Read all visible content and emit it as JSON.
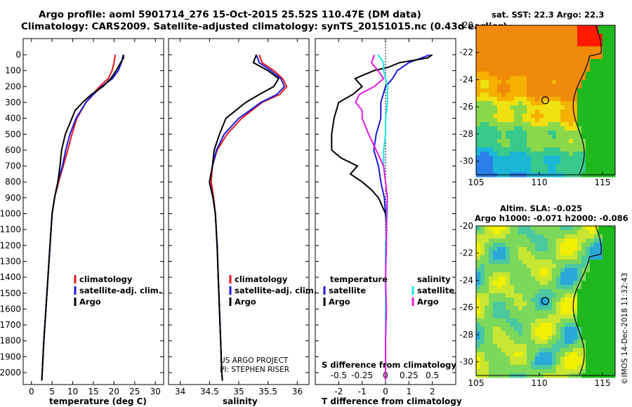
{
  "title_line1": "Argo profile: aoml 5901714_276 15-Oct-2015 25.52S 110.47E (DM data)",
  "title_line2": "Climatology: CARS2009. Satellite-adjusted climatology: synTS_20151015.nc (0.43d earlier)",
  "sst_title": "sat. SST: 22.3 Argo: 22.3",
  "sla_title1": "Altim. SLA: -0.025",
  "sla_title2": "Argo h1000: -0.071 h2000: -0.086",
  "stamp": "©IMOS 14-Dec-2018 11:32:43",
  "project_line1": "US ARGO PROJECT",
  "project_line2": "PI: STEPHEN RISER",
  "diff_annotation": "S difference from climatology",
  "colors": {
    "red": "#e8141c",
    "blue": "#1a1adc",
    "black": "#000000",
    "cyan": "#19e6e6",
    "magenta": "#e619e6"
  },
  "chart_data": [
    {
      "type": "line",
      "title": "",
      "xlabel": "temperature (deg C)",
      "ylabel": "",
      "xlim": [
        -2,
        32
      ],
      "ylim": [
        2100,
        0
      ],
      "x_ticks": [
        "0",
        "5",
        "10",
        "15",
        "20",
        "25",
        "30"
      ],
      "y_ticks": [
        "0",
        "100",
        "200",
        "300",
        "400",
        "500",
        "600",
        "700",
        "800",
        "900",
        "1000",
        "1100",
        "1200",
        "1300",
        "1400",
        "1500",
        "1600",
        "1700",
        "1800",
        "1900",
        "2000"
      ],
      "legend": [
        "climatology",
        "satellite-adj. clim.",
        "Argo"
      ],
      "series": [
        {
          "name": "climatology",
          "color": "red",
          "depth": [
            0,
            50,
            100,
            150,
            200,
            250,
            300,
            400,
            500,
            600,
            700,
            800,
            900,
            1000,
            1200,
            1400,
            1600,
            1800,
            2000,
            2050
          ],
          "values": [
            20.3,
            20.0,
            19.5,
            18.6,
            16.5,
            14.8,
            13.2,
            11.0,
            9.8,
            8.8,
            7.7,
            6.6,
            5.6,
            5.0,
            4.5,
            4.0,
            3.5,
            3.0,
            2.6,
            2.5
          ]
        },
        {
          "name": "satellite-adj. clim.",
          "color": "blue",
          "depth": [
            0,
            50,
            100,
            150,
            200,
            250,
            300,
            400,
            500,
            600,
            700,
            800,
            900,
            1000,
            1200,
            1400,
            1600,
            1800,
            2000,
            2050
          ],
          "values": [
            22.2,
            21.8,
            21.0,
            19.6,
            17.0,
            15.0,
            13.2,
            10.8,
            9.3,
            8.3,
            7.5,
            6.4,
            5.6,
            5.0,
            4.5,
            4.0,
            3.5,
            3.0,
            2.6,
            2.5
          ]
        },
        {
          "name": "Argo",
          "color": "black",
          "depth": [
            0,
            20,
            50,
            100,
            150,
            200,
            250,
            300,
            350,
            400,
            500,
            600,
            700,
            800,
            900,
            1000,
            1200,
            1400,
            1600,
            1800,
            2000,
            2050
          ],
          "values": [
            22.3,
            22.3,
            21.6,
            20.5,
            19.2,
            17.3,
            14.5,
            12.4,
            10.6,
            9.8,
            8.2,
            7.3,
            6.9,
            6.4,
            5.6,
            5.0,
            4.5,
            4.0,
            3.5,
            3.0,
            2.6,
            2.5
          ]
        }
      ]
    },
    {
      "type": "line",
      "title": "",
      "xlabel": "salinity",
      "ylabel": "",
      "xlim": [
        33.8,
        36.2
      ],
      "ylim": [
        2100,
        0
      ],
      "x_ticks": [
        "34",
        "34.5",
        "35",
        "35.5",
        "36"
      ],
      "legend": [
        "climatology",
        "satellite-adj. clim.",
        "Argo"
      ],
      "series": [
        {
          "name": "climatology",
          "color": "red",
          "depth": [
            0,
            50,
            100,
            150,
            200,
            250,
            300,
            400,
            500,
            600,
            700,
            800,
            900,
            1000,
            1200,
            1400,
            1600,
            1800,
            2000,
            2050
          ],
          "values": [
            35.35,
            35.4,
            35.6,
            35.75,
            35.82,
            35.7,
            35.4,
            35.05,
            34.8,
            34.63,
            34.55,
            34.53,
            34.57,
            34.6,
            34.63,
            34.65,
            34.67,
            34.69,
            34.71,
            34.72
          ]
        },
        {
          "name": "satellite-adj. clim.",
          "color": "blue",
          "depth": [
            0,
            50,
            100,
            150,
            200,
            250,
            300,
            400,
            500,
            600,
            700,
            800,
            900,
            1000,
            1200,
            1400,
            1600,
            1800,
            2000,
            2050
          ],
          "values": [
            35.3,
            35.35,
            35.55,
            35.72,
            35.78,
            35.65,
            35.38,
            35.0,
            34.75,
            34.62,
            34.55,
            34.5,
            34.56,
            34.6,
            34.63,
            34.65,
            34.67,
            34.69,
            34.71,
            34.72
          ]
        },
        {
          "name": "Argo",
          "color": "black",
          "depth": [
            0,
            50,
            100,
            150,
            200,
            250,
            300,
            350,
            400,
            500,
            600,
            700,
            800,
            900,
            1000,
            1200,
            1400,
            1600,
            1800,
            2000,
            2050
          ],
          "values": [
            35.3,
            35.25,
            35.5,
            35.68,
            35.6,
            35.35,
            35.12,
            34.95,
            34.78,
            34.67,
            34.58,
            34.55,
            34.5,
            34.56,
            34.6,
            34.63,
            34.65,
            34.67,
            34.69,
            34.71,
            34.72
          ]
        }
      ]
    },
    {
      "type": "line",
      "title": "",
      "xlabel": "T difference from climatology",
      "ylabel": "",
      "xlim": [
        -3,
        3
      ],
      "ylim": [
        2100,
        0
      ],
      "x_ticks": [
        "-2",
        "-1",
        "0",
        "1",
        "2"
      ],
      "s_ticks": [
        "-0.5",
        "-0.25",
        "0",
        "0.25",
        "0.5"
      ],
      "s_xlim": [
        -0.75,
        0.75
      ],
      "legend_left": {
        "heading": "temperature",
        "items": [
          "satellite",
          "Argo"
        ]
      },
      "legend_right": {
        "heading": "salinity",
        "items": [
          "satellite",
          "Argo"
        ]
      },
      "series": [
        {
          "name": "T satellite",
          "color": "blue",
          "axis": "T",
          "depth": [
            0,
            50,
            100,
            150,
            200,
            250,
            300,
            400,
            500,
            600,
            700,
            800,
            900,
            1000,
            1100,
            1200,
            1400,
            1600,
            1800,
            2000,
            2050
          ],
          "values": [
            1.9,
            1.0,
            0.5,
            0.3,
            0.0,
            -0.1,
            -0.2,
            -0.2,
            -0.4,
            -0.5,
            -0.3,
            -0.2,
            -0.05,
            0.0,
            0.05,
            0.0,
            0.0,
            0.0,
            0.0,
            0.0,
            0.0
          ]
        },
        {
          "name": "T Argo",
          "color": "black",
          "axis": "T",
          "depth": [
            0,
            20,
            50,
            80,
            100,
            150,
            200,
            250,
            300,
            400,
            500,
            600,
            650,
            700,
            750,
            800,
            850,
            900,
            1000,
            1100,
            1200,
            1400,
            1600,
            1800,
            2000,
            2050
          ],
          "values": [
            2.0,
            1.8,
            0.6,
            0.1,
            -0.5,
            -1.3,
            -1.0,
            -1.4,
            -2.0,
            -2.2,
            -2.3,
            -2.3,
            -1.9,
            -1.2,
            -1.5,
            -1.0,
            -0.6,
            -0.3,
            0.0,
            0.05,
            0.0,
            0.0,
            0.0,
            0.0,
            0.0,
            0.0
          ]
        },
        {
          "name": "S satellite",
          "color": "cyan",
          "axis": "S",
          "depth": [
            0,
            50,
            100,
            150,
            200,
            300,
            400,
            500,
            600,
            700,
            800,
            900,
            1000,
            1200,
            1400,
            1600,
            1800,
            2000,
            2050
          ],
          "values": [
            -0.08,
            -0.02,
            -0.02,
            0.0,
            0.02,
            0.02,
            0.0,
            0.0,
            -0.02,
            -0.02,
            0.0,
            0.02,
            0.02,
            0.0,
            0.0,
            0.0,
            0.0,
            0.0,
            0.0
          ]
        },
        {
          "name": "S Argo",
          "color": "magenta",
          "axis": "S",
          "depth": [
            0,
            50,
            100,
            150,
            200,
            250,
            300,
            350,
            400,
            500,
            600,
            700,
            800,
            900,
            1000,
            1200,
            1400,
            1600,
            1800,
            2000,
            2050
          ],
          "values": [
            -0.12,
            -0.15,
            -0.08,
            -0.02,
            -0.12,
            -0.28,
            -0.32,
            -0.25,
            -0.25,
            -0.18,
            -0.1,
            -0.02,
            0.0,
            0.02,
            0.01,
            0.01,
            0.0,
            0.01,
            0.0,
            0.0,
            0.0
          ]
        }
      ]
    },
    {
      "type": "heatmap",
      "title": "sat. SST: 22.3 Argo: 22.3",
      "xlim": [
        105,
        116
      ],
      "ylim": [
        -31,
        -20
      ],
      "x_ticks": [
        "105",
        "110",
        "115"
      ],
      "y_ticks": [
        "-20",
        "-22",
        "-24",
        "-26",
        "-28",
        "-30"
      ],
      "marker": {
        "lon": 110.47,
        "lat": -25.52
      }
    },
    {
      "type": "heatmap",
      "title": "Altim. SLA: -0.025",
      "xlim": [
        105,
        116
      ],
      "ylim": [
        -31,
        -20
      ],
      "x_ticks": [
        "105",
        "110",
        "115"
      ],
      "y_ticks": [
        "-20",
        "-22",
        "-24",
        "-26",
        "-28",
        "-30"
      ],
      "marker": {
        "lon": 110.47,
        "lat": -25.52
      }
    }
  ]
}
